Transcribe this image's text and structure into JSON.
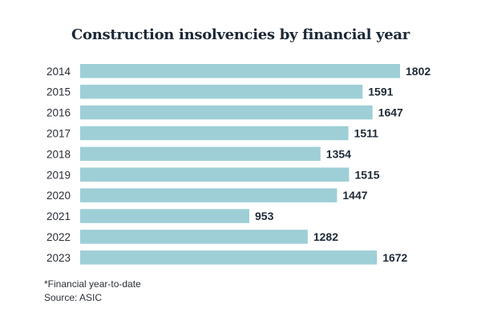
{
  "chart_data": {
    "type": "bar",
    "orientation": "horizontal",
    "title": "Construction insolvencies by financial year",
    "categories": [
      "2014",
      "2015",
      "2016",
      "2017",
      "2018",
      "2019",
      "2020",
      "2021",
      "2022",
      "2023"
    ],
    "values": [
      1802,
      1591,
      1647,
      1511,
      1354,
      1515,
      1447,
      953,
      1282,
      1672
    ],
    "xlim": [
      0,
      1802
    ],
    "grid": false,
    "bar_color": "#9ecfd6",
    "label_color": "#1f2a36"
  },
  "footnote": "*Financial year-to-date",
  "source": "Source: ASIC"
}
